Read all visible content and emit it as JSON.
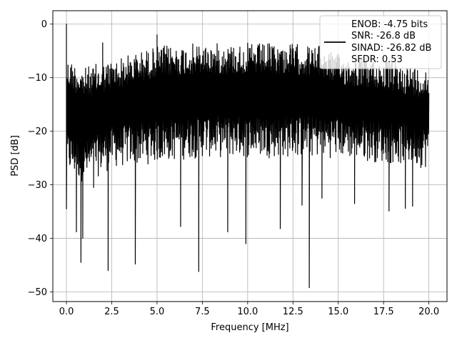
{
  "chart_data": {
    "type": "line",
    "xlabel": "Frequency [MHz]",
    "ylabel": "PSD [dB]",
    "xlim": [
      -0.75,
      21.0
    ],
    "ylim": [
      -51.8,
      2.5
    ],
    "xticks": [
      0.0,
      2.5,
      5.0,
      7.5,
      10.0,
      12.5,
      15.0,
      17.5,
      20.0
    ],
    "xtick_labels": [
      "0.0",
      "2.5",
      "5.0",
      "7.5",
      "10.0",
      "12.5",
      "15.0",
      "17.5",
      "20.0"
    ],
    "yticks": [
      0,
      -10,
      -20,
      -30,
      -40,
      -50
    ],
    "ytick_labels": [
      "0",
      "−10",
      "−20",
      "−30",
      "−40",
      "−50"
    ],
    "grid": true,
    "legend_position": "top-right",
    "legend_lines": [
      "ENOB: -4.75 bits",
      "SNR: -26.8 dB",
      "SINAD: -26.82 dB",
      "SFDR: 0.53"
    ],
    "series": [
      {
        "color": "#000000",
        "x_range": [
          0.0,
          20.0
        ],
        "envelope_upper": [
          [
            0.0,
            -6
          ],
          [
            1.0,
            -8
          ],
          [
            2.0,
            -7
          ],
          [
            3.0,
            -6
          ],
          [
            4.0,
            -5
          ],
          [
            5.0,
            -4
          ],
          [
            7.5,
            -3.5
          ],
          [
            10.0,
            -3.5
          ],
          [
            12.5,
            -3.5
          ],
          [
            14.0,
            -4
          ],
          [
            15.0,
            -5.5
          ],
          [
            17.5,
            -6.5
          ],
          [
            20.0,
            -8
          ]
        ],
        "envelope_lower": [
          [
            0.0,
            -28
          ],
          [
            1.0,
            -30
          ],
          [
            2.5,
            -27
          ],
          [
            5.0,
            -26
          ],
          [
            7.5,
            -25
          ],
          [
            10.0,
            -25
          ],
          [
            12.5,
            -25
          ],
          [
            15.0,
            -25
          ],
          [
            17.5,
            -26
          ],
          [
            20.0,
            -27
          ]
        ],
        "peaks": [
          [
            0.0,
            0.0
          ],
          [
            2.0,
            -3.5
          ],
          [
            5.0,
            -2.0
          ]
        ],
        "dips": [
          [
            0.0,
            -34.5
          ],
          [
            0.55,
            -38.8
          ],
          [
            0.8,
            -44.5
          ],
          [
            0.9,
            -40.0
          ],
          [
            1.5,
            -30.5
          ],
          [
            2.3,
            -46.0
          ],
          [
            3.8,
            -44.8
          ],
          [
            6.3,
            -37.8
          ],
          [
            7.3,
            -46.2
          ],
          [
            8.9,
            -38.8
          ],
          [
            9.9,
            -41.0
          ],
          [
            11.8,
            -38.2
          ],
          [
            13.0,
            -33.8
          ],
          [
            13.4,
            -49.2
          ],
          [
            14.1,
            -32.5
          ],
          [
            15.9,
            -33.5
          ],
          [
            17.8,
            -34.9
          ],
          [
            18.7,
            -34.4
          ],
          [
            19.1,
            -34.0
          ]
        ]
      }
    ]
  }
}
